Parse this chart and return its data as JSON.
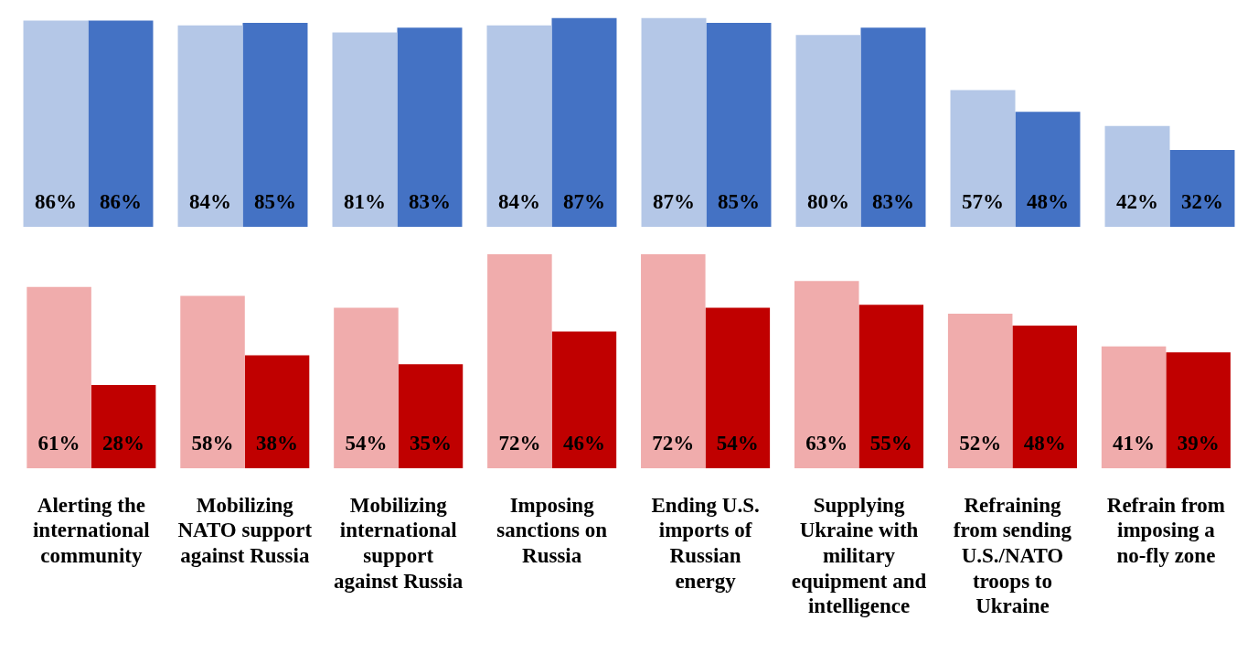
{
  "chart_data": [
    {
      "type": "bar",
      "tick_labels": false,
      "series": [
        {
          "color": "#b4c7e7",
          "values": [
            86,
            84,
            81,
            84,
            87,
            80,
            57,
            42
          ],
          "value_labels": [
            "86%",
            "84%",
            "81%",
            "84%",
            "87%",
            "80%",
            "57%",
            "42%"
          ]
        },
        {
          "color": "#4472c4",
          "values": [
            86,
            85,
            83,
            87,
            85,
            83,
            48,
            32
          ],
          "value_labels": [
            "86%",
            "85%",
            "83%",
            "87%",
            "85%",
            "83%",
            "48%",
            "32%"
          ]
        }
      ]
    },
    {
      "type": "bar",
      "categories": [
        "Alerting the international community",
        "Mobilizing NATO support against Russia",
        "Mobilizing international support against Russia",
        "Imposing sanctions on Russia",
        "Ending U.S. imports of Russian energy",
        "Supplying Ukraine with military equipment and intelligence",
        "Refraining from sending U.S./NATO troops to Ukraine",
        "Refrain from imposing a no-fly zone"
      ],
      "tick_labels": "x",
      "series": [
        {
          "color": "#f0acac",
          "values": [
            61,
            58,
            54,
            72,
            72,
            63,
            52,
            41
          ],
          "value_labels": [
            "61%",
            "58%",
            "54%",
            "72%",
            "72%",
            "63%",
            "52%",
            "41%"
          ]
        },
        {
          "color": "#c00000",
          "values": [
            28,
            38,
            35,
            46,
            54,
            55,
            48,
            39
          ],
          "value_labels": [
            "28%",
            "38%",
            "35%",
            "46%",
            "54%",
            "55%",
            "48%",
            "39%"
          ]
        }
      ]
    }
  ]
}
